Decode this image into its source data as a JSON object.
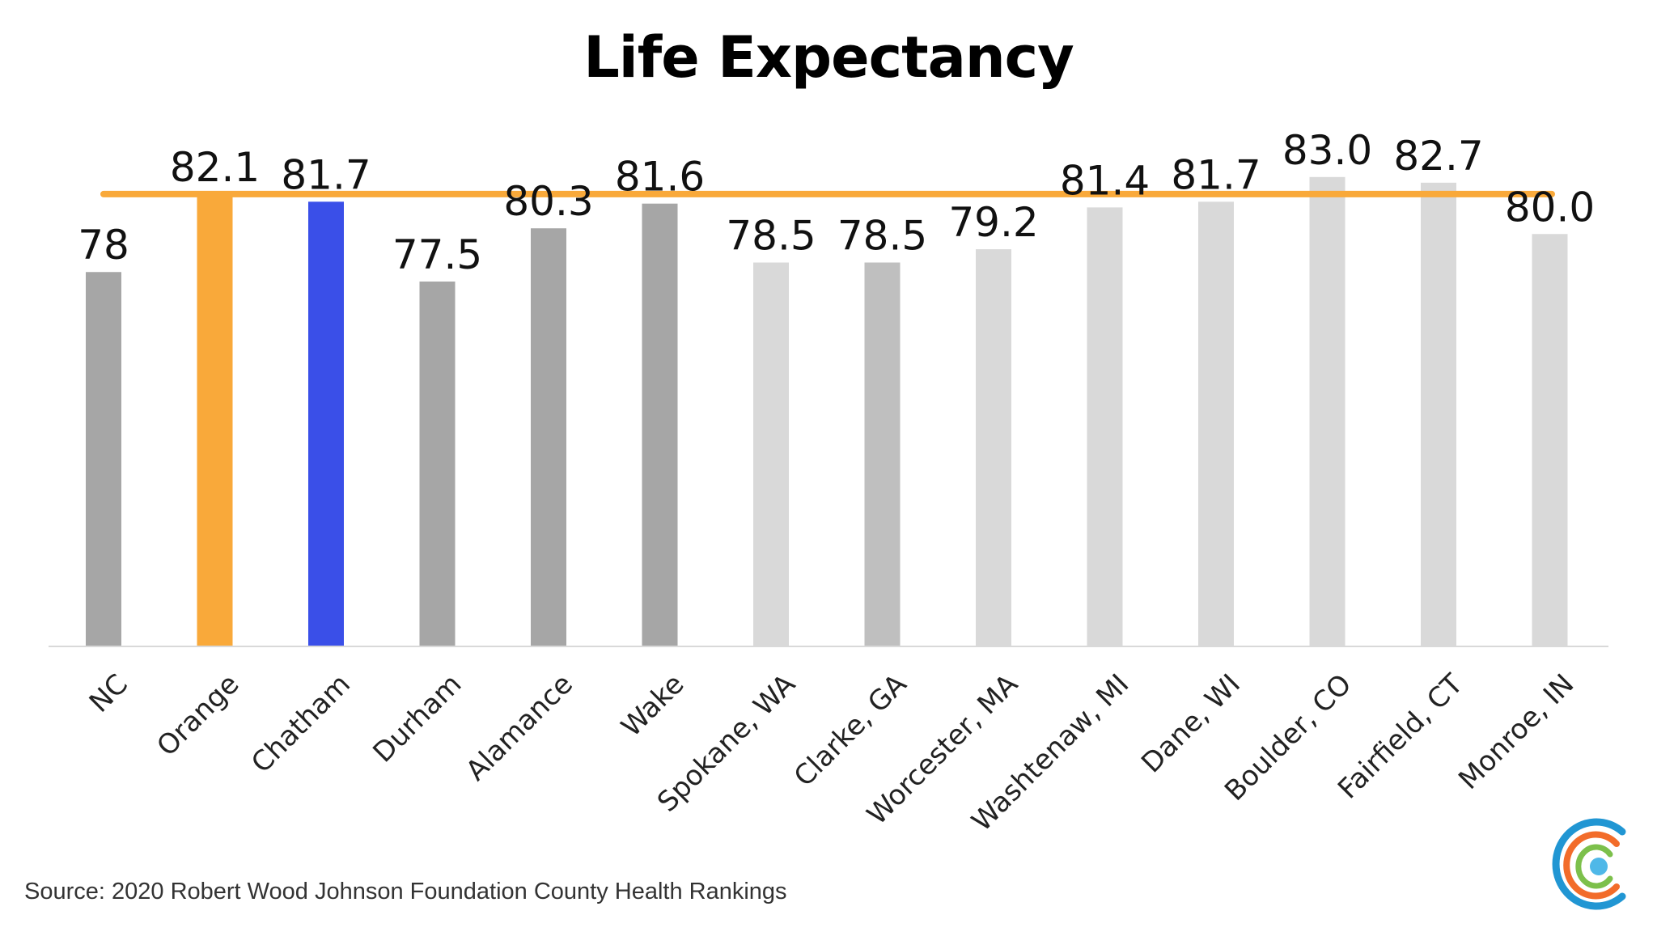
{
  "chart_data": {
    "type": "bar",
    "title": "Life Expectancy",
    "categories": [
      "NC",
      "Orange",
      "Chatham",
      "Durham",
      "Alamance",
      "Wake",
      "Spokane, WA",
      "Clarke, GA",
      "Worcester, MA",
      "Washtenaw, MI",
      "Dane, WI",
      "Boulder, CO",
      "Fairfield, CT",
      "Monroe, IN"
    ],
    "values": [
      78,
      82.1,
      81.7,
      77.5,
      80.3,
      81.6,
      78.5,
      78.5,
      79.2,
      81.4,
      81.7,
      83.0,
      82.7,
      80.0
    ],
    "value_labels": [
      "78",
      "82.1",
      "81.7",
      "77.5",
      "80.3",
      "81.6",
      "78.5",
      "78.5",
      "79.2",
      "81.4",
      "81.7",
      "83.0",
      "82.7",
      "80.0"
    ],
    "bar_colors": [
      "#a6a6a6",
      "#f9a93a",
      "#3a4fe8",
      "#a6a6a6",
      "#a6a6a6",
      "#a6a6a6",
      "#d9d9d9",
      "#bfbfbf",
      "#d9d9d9",
      "#d9d9d9",
      "#d9d9d9",
      "#d9d9d9",
      "#d9d9d9",
      "#d9d9d9"
    ],
    "reference_line": {
      "value": 82.1,
      "color": "#f9a93a"
    },
    "ylim": [
      58.3,
      83.8
    ],
    "xlabel": "",
    "ylabel": "",
    "grid": false,
    "legend": "none"
  },
  "source": "Source: 2020 Robert Wood Johnson Foundation County Health Rankings",
  "logo": {
    "colors": [
      "#2196d3",
      "#f26c2a",
      "#7cc04b",
      "#4fb8e8"
    ]
  }
}
